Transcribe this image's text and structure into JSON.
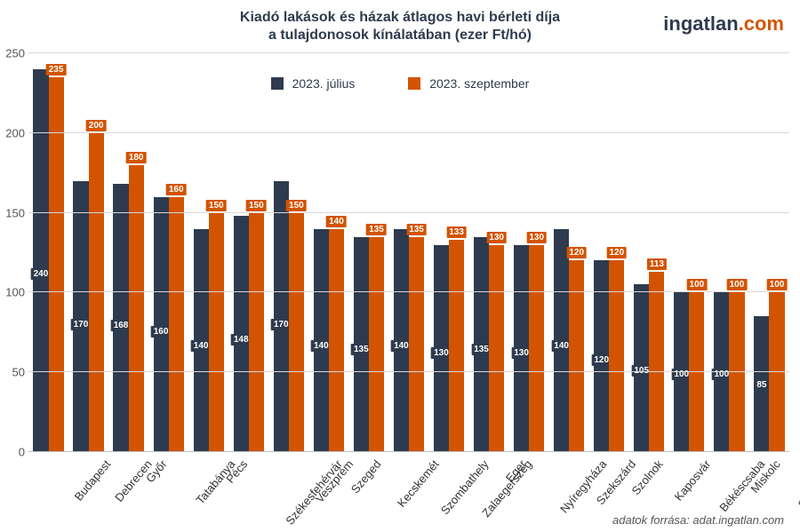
{
  "chart": {
    "type": "bar",
    "title_line1": "Kiadó lakások és házak átlagos havi bérleti díja",
    "title_line2": "a tulajdonosok kínálatában (ezer Ft/hó)",
    "title_fontsize": 16,
    "title_color": "#2e3b4e",
    "brand_part1": "ingatlan",
    "brand_part2": ".com",
    "brand_color1": "#2e3b4e",
    "brand_color2": "#d35400",
    "legend": {
      "series1_label": "2023. július",
      "series2_label": "2023. szeptember",
      "fontsize": 14
    },
    "series_colors": {
      "s1": "#2e3b4e",
      "s2": "#d35400"
    },
    "background_color": "#ffffff",
    "grid_color": "#d9d9d9",
    "axis_color": "#bfbfbf",
    "ylim": [
      0,
      250
    ],
    "ytick_step": 50,
    "yticks": [
      0,
      50,
      100,
      150,
      200,
      250
    ],
    "bar_width": 0.38,
    "categories": [
      "Budapest",
      "Debrecen",
      "Győr",
      "Tatabánya",
      "Pécs",
      "Székesfehérvár",
      "Veszprém",
      "Szeged",
      "Kecskemét",
      "Szombathely",
      "Zalaegerszeg",
      "Eger",
      "Nyíregyháza",
      "Szekszárd",
      "Szolnok",
      "Kaposvár",
      "Békéscsaba",
      "Miskolc",
      "Salgótarján"
    ],
    "series1_values": [
      240,
      170,
      168,
      160,
      140,
      148,
      170,
      140,
      135,
      140,
      130,
      135,
      130,
      140,
      120,
      105,
      100,
      100,
      85
    ],
    "series2_values": [
      235,
      200,
      180,
      160,
      150,
      150,
      150,
      140,
      135,
      135,
      133,
      130,
      130,
      120,
      120,
      113,
      100,
      100,
      100
    ],
    "label_s1_position": [
      "inside",
      "inside",
      "inside",
      "inside",
      "inside",
      "inside",
      "inside",
      "inside",
      "inside",
      "inside",
      "inside",
      "inside",
      "inside",
      "inside",
      "inside",
      "inside",
      "inside",
      "inside",
      "inside"
    ],
    "label_s2_position": [
      "above",
      "above",
      "above",
      "above",
      "above",
      "above",
      "above",
      "above",
      "above",
      "above",
      "above",
      "above",
      "above",
      "above",
      "above",
      "above",
      "above",
      "above",
      "above"
    ],
    "xlabel_fontsize": 13,
    "xlabel_rotation_deg": -50,
    "source_text": "adatok forrása: adat.ingatlan.com",
    "source_fontsize": 13
  }
}
